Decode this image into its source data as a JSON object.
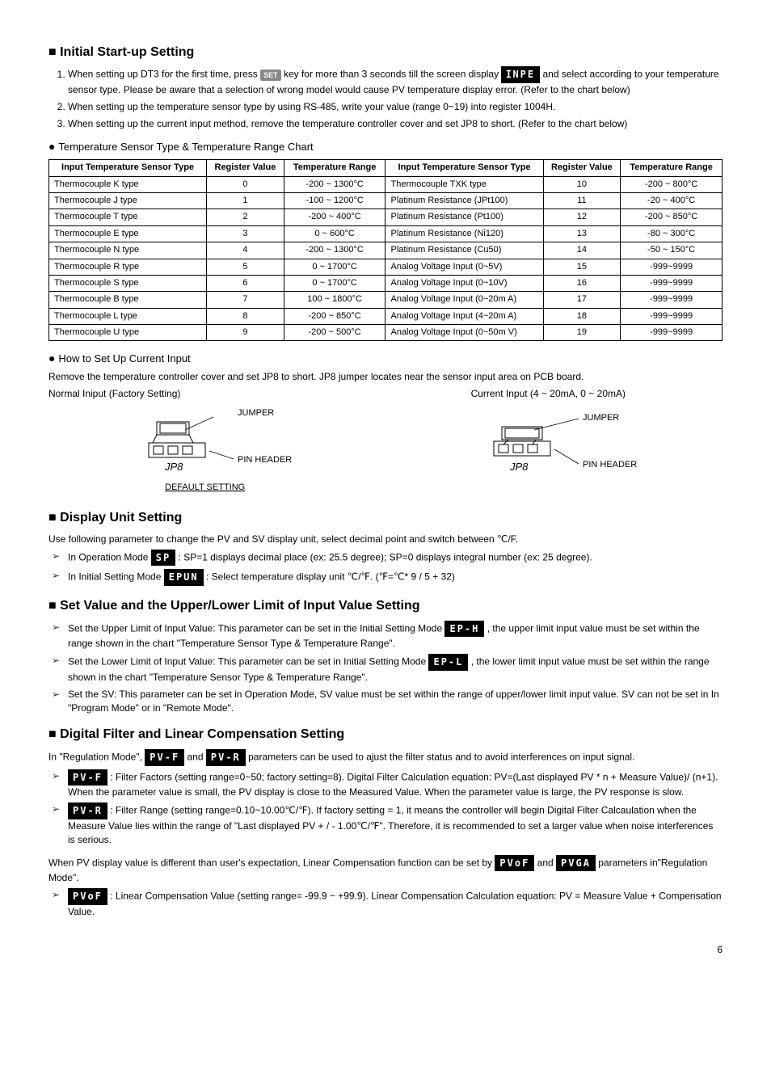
{
  "s1": {
    "title": "Initial Start-up Setting",
    "items": [
      {
        "pre": "When setting up DT3 for the first time, press ",
        "key": "SET",
        "mid": " key for more than 3 seconds till the screen display ",
        "seg": "ⵊNPE",
        "post": " and select according to your temperature sensor type. Please be aware that a selection of wrong model would cause PV temperature display error. (Refer to the chart below)"
      },
      {
        "text": "When setting up the temperature sensor type by using RS-485, write your value (range 0~19) into register 1004H."
      },
      {
        "text": "When setting up the current input method, remove the temperature controller cover and set JP8 to short.   (Refer to the chart below)"
      }
    ]
  },
  "sensorChart": {
    "title": "Temperature Sensor Type & Temperature Range Chart",
    "headers": [
      "Input Temperature Sensor Type",
      "Register Value",
      "Temperature Range",
      "Input Temperature Sensor Type",
      "Register Value",
      "Temperature Range"
    ],
    "rows": [
      [
        "Thermocouple K type",
        "0",
        "-200 ~ 1300°C",
        "Thermocouple TXK type",
        "10",
        "-200 ~ 800°C"
      ],
      [
        "Thermocouple J type",
        "1",
        "-100 ~ 1200°C",
        "Platinum Resistance (JPt100)",
        "11",
        "-20 ~ 400°C"
      ],
      [
        "Thermocouple T type",
        "2",
        "-200 ~ 400°C",
        "Platinum Resistance (Pt100)",
        "12",
        "-200 ~ 850°C"
      ],
      [
        "Thermocouple E type",
        "3",
        "0 ~ 600°C",
        "Platinum Resistance (Ni120)",
        "13",
        "-80 ~ 300°C"
      ],
      [
        "Thermocouple N type",
        "4",
        "-200 ~ 1300°C",
        "Platinum Resistance (Cu50)",
        "14",
        "-50 ~ 150°C"
      ],
      [
        "Thermocouple R type",
        "5",
        "0 ~ 1700°C",
        "Analog Voltage Input (0~5V)",
        "15",
        "-999~9999"
      ],
      [
        "Thermocouple S type",
        "6",
        "0 ~ 1700°C",
        "Analog Voltage Input (0~10V)",
        "16",
        "-999~9999"
      ],
      [
        "Thermocouple B type",
        "7",
        "100 ~ 1800°C",
        "Analog Voltage Input (0~20m A)",
        "17",
        "-999~9999"
      ],
      [
        "Thermocouple L type",
        "8",
        "-200 ~ 850°C",
        "Analog Voltage Input (4~20m A)",
        "18",
        "-999~9999"
      ],
      [
        "Thermocouple U type",
        "9",
        "-200 ~ 500°C",
        "Analog Voltage Input (0~50m V)",
        "19",
        "-999~9999"
      ]
    ]
  },
  "currentInput": {
    "title": "How to Set Up Current Input",
    "desc": "Remove the temperature controller cover and set JP8 to short. JP8 jumper locates near the sensor input area on PCB board.",
    "left": "Normal Iniput (Factory Setting)",
    "right": "Current Input (4 ~ 20mA, 0 ~ 20mA)",
    "labels": {
      "jumper": "JUMPER",
      "pin": "PIN HEADER",
      "jp8": "JP8",
      "def": "DEFAULT SETTING"
    }
  },
  "s2": {
    "title": "Display Unit Setting",
    "intro": "Use following parameter to change the PV and SV display unit,   select decimal point and switch between ℃/F.",
    "items": [
      {
        "pre": "In Operation Mode ",
        "seg": "  SP",
        "post": ": SP=1 displays decimal place (ex: 25.5 degree); SP=0 displays integral number (ex: 25 degree)."
      },
      {
        "pre": "In Initial Setting Mode ",
        "seg": "ЕPUN",
        "post": ": Select temperature display unit ℃/℉. (℉=℃* 9 / 5 + 32)"
      }
    ]
  },
  "s3": {
    "title": "Set Value and the Upper/Lower Limit of Input Value Setting",
    "items": [
      {
        "pre": "Set the Upper Limit of Input Value: This parameter can be set in the Initial Setting Mode ",
        "seg": "ЕP-H",
        "post": ", the upper limit input value must be set within the range shown in the chart \"Temperature Sensor Type & Temperature Range\"."
      },
      {
        "pre": "Set the Lower Limit of Input Value: This parameter can be set in Initial Setting Mode ",
        "seg": "ЕP-L",
        "post": ", the lower limit input value must be set within the range shown in the chart \"Temperature Sensor Type & Temperature Range\"."
      },
      {
        "text": "Set the SV: This parameter can be set in Operation Mode, SV value must be set within the range of upper/lower limit input value. SV can not be set in In \"Program Mode\" or in \"Remote Mode\"."
      }
    ]
  },
  "s4": {
    "title": "Digital Filter and Linear Compensation Setting",
    "intro_pre": "In \"Regulation Mode\", ",
    "intro_seg1": "PV-F",
    "intro_mid": " and ",
    "intro_seg2": "PV-R",
    "intro_post": " parameters can be used to ajust the filter status and to avoid interferences on input signal.",
    "items": [
      {
        "seg": "PV-F",
        "post": ": Filter Factors (setting range=0~50; factory setting=8). Digital Filter Calculation equation: PV=(Last displayed PV * n + Measure Value)/ (n+1). When the parameter value is small, the PV display is close to the Measured Value. When the parameter value is large, the PV response is slow."
      },
      {
        "seg": "PV-R",
        "post": ": Filter Range (setting range=0.10~10.00℃/℉). If factory setting = 1, it means the controller will begin Digital Filter Calcaulation when the Measure Value lies within the range of \"Last displayed PV + / - 1.00℃/℉\". Therefore, it is recommended to set a larger value when noise interferences is serious."
      }
    ],
    "out_pre": "When PV display value is different than user's expectation, Linear Compensation function can be set by ",
    "out_seg1": "PVoF",
    "out_mid": " and ",
    "out_seg2": "PVGA",
    "out_post": " parameters in\"Regulation Mode\".",
    "items2": [
      {
        "seg": "PVoF",
        "post": ": Linear Compensation Value (setting range= -99.9 ~ +99.9). Linear Compensation Calculation equation: PV = Measure Value + Compensation Value."
      }
    ]
  },
  "pgnum": "6"
}
